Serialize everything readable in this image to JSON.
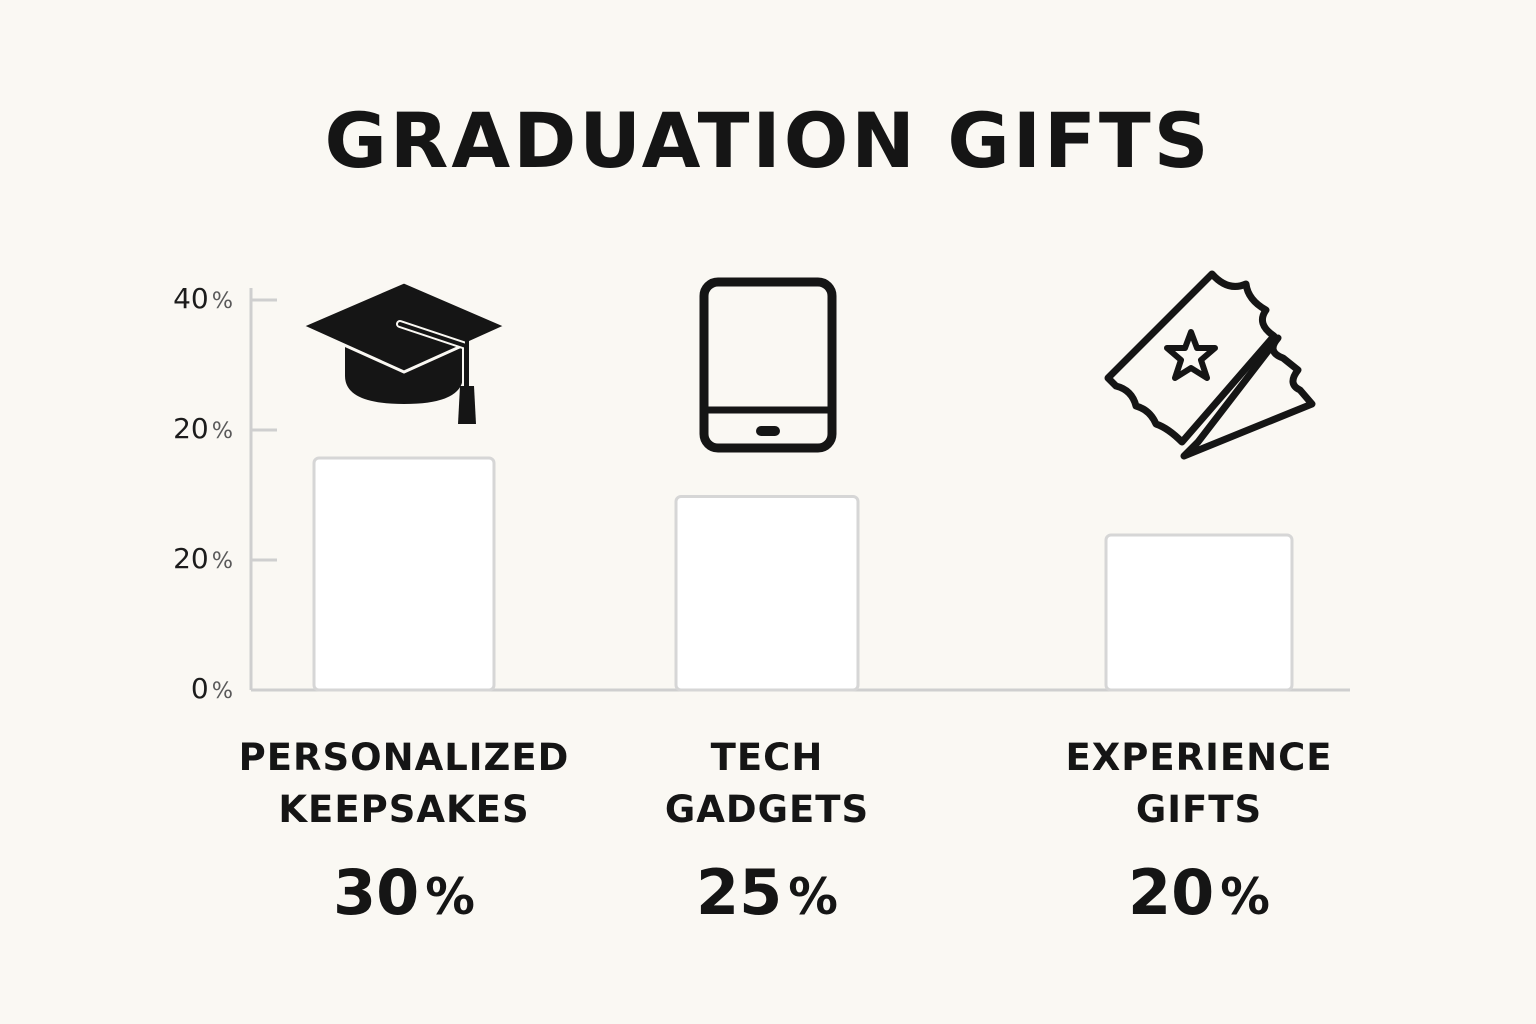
{
  "chart_data": {
    "type": "bar",
    "title": "GRADUATION GIFTS",
    "categories": [
      [
        "PERSONALIZED",
        "KEEPSAKES"
      ],
      [
        "TECH",
        "GADGETS"
      ],
      [
        "EXPERIENCE",
        "GIFTS"
      ]
    ],
    "values": [
      30,
      25,
      20
    ],
    "value_labels": [
      "30",
      "25",
      "20"
    ],
    "value_unit": "%",
    "icons": [
      "graduation-cap-icon",
      "tablet-icon",
      "tickets-icon"
    ],
    "y_tick_labels": [
      "0",
      "20",
      "20",
      "40"
    ],
    "y_tick_unit": "%",
    "grid": false,
    "legend": "none"
  }
}
